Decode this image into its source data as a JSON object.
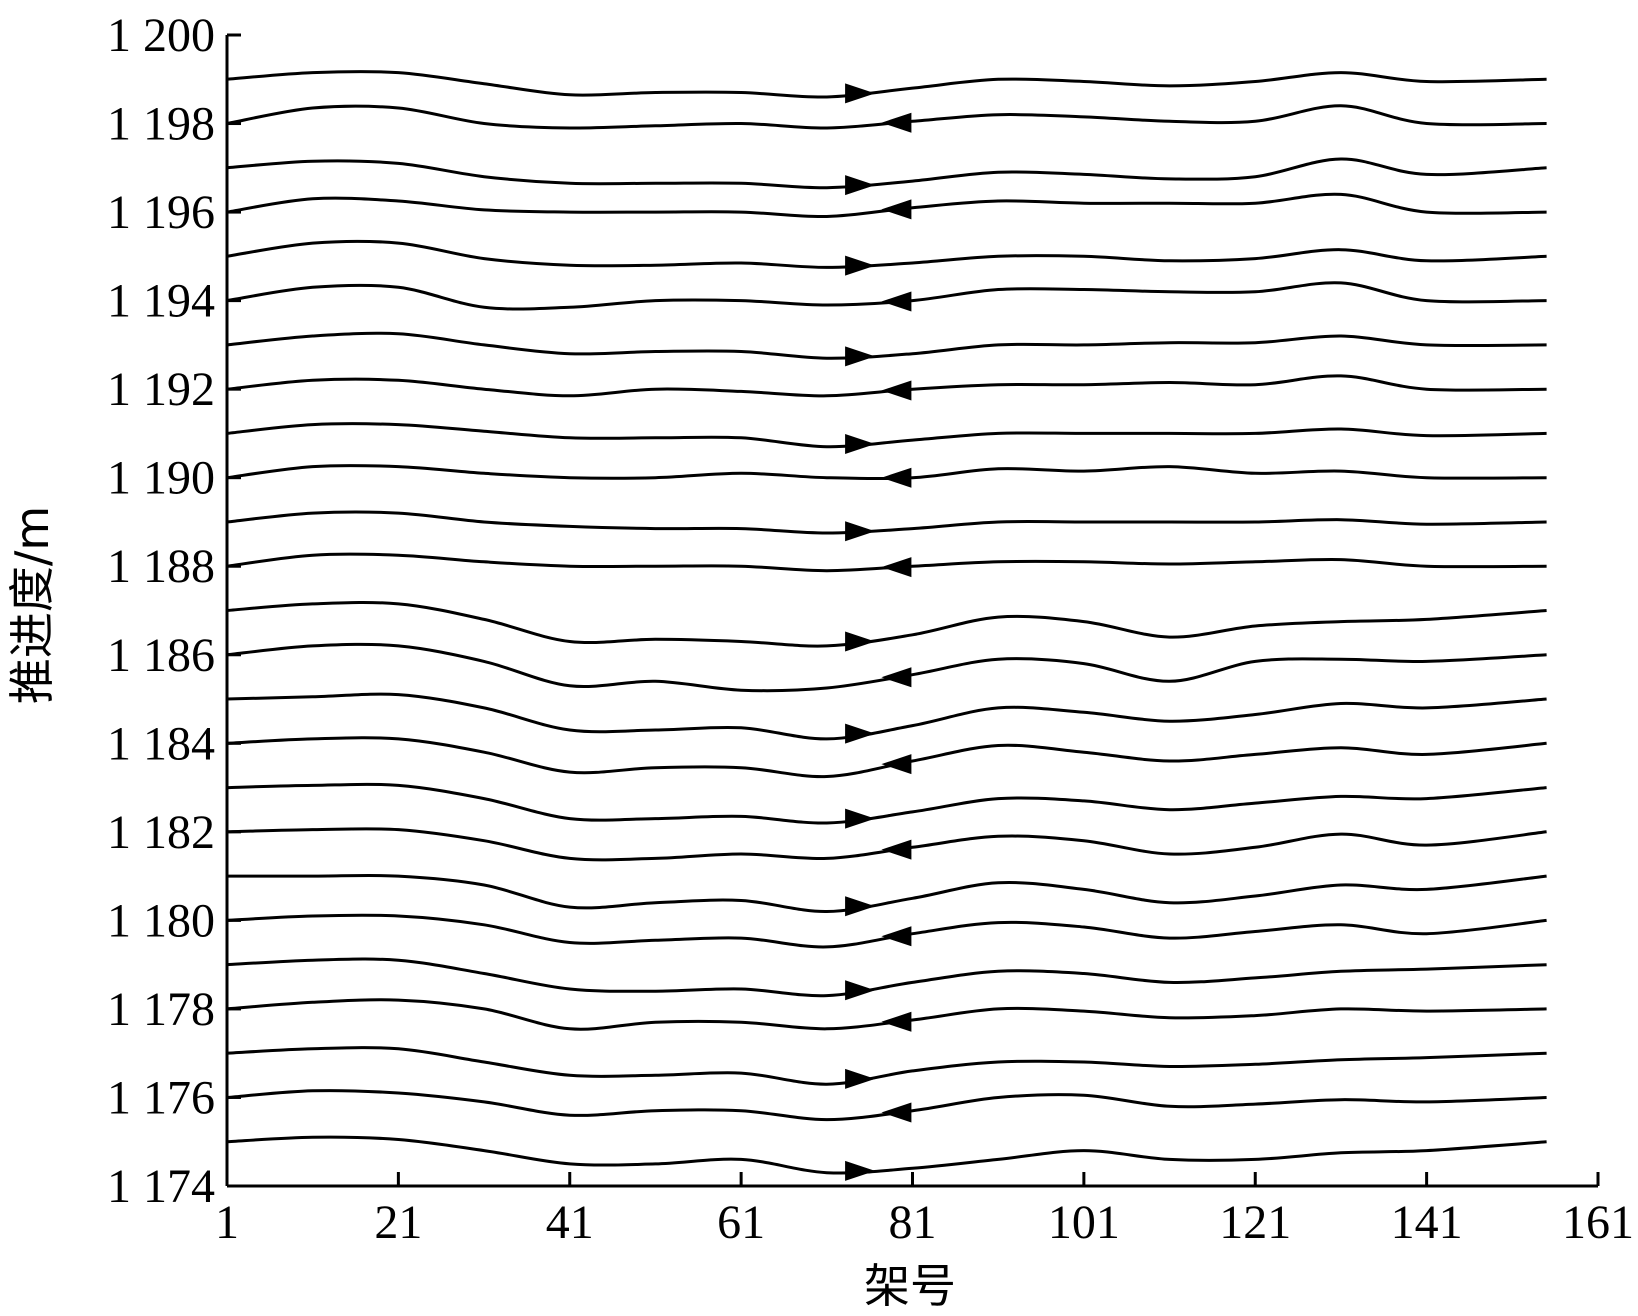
{
  "chart_data": {
    "type": "line",
    "title": "",
    "xlabel": "架号",
    "ylabel": "推进度/m",
    "xlim": [
      1,
      161
    ],
    "ylim": [
      1174,
      1200
    ],
    "xticks": [
      1,
      21,
      41,
      61,
      81,
      101,
      121,
      141,
      161
    ],
    "xtick_labels": [
      "1",
      "21",
      "41",
      "61",
      "81",
      "101",
      "121",
      "141",
      "161"
    ],
    "yticks": [
      1174,
      1176,
      1178,
      1180,
      1182,
      1184,
      1186,
      1188,
      1190,
      1192,
      1194,
      1196,
      1198,
      1200
    ],
    "ytick_labels": [
      "1 174",
      "1 176",
      "1 178",
      "1 180",
      "1 182",
      "1 184",
      "1 186",
      "1 188",
      "1 190",
      "1 192",
      "1 194",
      "1 196",
      "1 198",
      "1 200"
    ],
    "grid": false,
    "line_color": "#000000",
    "x": [
      1,
      11,
      21,
      31,
      41,
      51,
      61,
      71,
      81,
      91,
      101,
      111,
      121,
      131,
      141,
      155
    ],
    "series": [
      {
        "values": [
          1175.0,
          1175.1,
          1175.05,
          1174.8,
          1174.5,
          1174.5,
          1174.6,
          1174.3,
          1174.4,
          1174.6,
          1174.8,
          1174.6,
          1174.6,
          1174.75,
          1174.8,
          1175.0
        ],
        "direction": "right"
      },
      {
        "values": [
          1176.0,
          1176.15,
          1176.1,
          1175.9,
          1175.6,
          1175.7,
          1175.7,
          1175.5,
          1175.7,
          1176.0,
          1176.05,
          1175.8,
          1175.85,
          1175.95,
          1175.9,
          1176.0
        ],
        "direction": "left"
      },
      {
        "values": [
          1177.0,
          1177.1,
          1177.1,
          1176.8,
          1176.5,
          1176.5,
          1176.55,
          1176.3,
          1176.6,
          1176.8,
          1176.8,
          1176.7,
          1176.75,
          1176.85,
          1176.9,
          1177.0
        ],
        "direction": "right"
      },
      {
        "values": [
          1178.0,
          1178.15,
          1178.2,
          1178.0,
          1177.55,
          1177.7,
          1177.7,
          1177.55,
          1177.75,
          1178.0,
          1177.95,
          1177.8,
          1177.85,
          1178.0,
          1177.95,
          1178.0
        ],
        "direction": "left"
      },
      {
        "values": [
          1179.0,
          1179.1,
          1179.1,
          1178.8,
          1178.45,
          1178.4,
          1178.45,
          1178.3,
          1178.6,
          1178.85,
          1178.8,
          1178.6,
          1178.7,
          1178.85,
          1178.9,
          1179.0
        ],
        "direction": "right"
      },
      {
        "values": [
          1180.0,
          1180.1,
          1180.1,
          1179.9,
          1179.5,
          1179.55,
          1179.6,
          1179.4,
          1179.7,
          1179.95,
          1179.85,
          1179.6,
          1179.75,
          1179.9,
          1179.7,
          1180.0
        ],
        "direction": "left"
      },
      {
        "values": [
          1181.0,
          1181.0,
          1181.0,
          1180.8,
          1180.3,
          1180.4,
          1180.45,
          1180.2,
          1180.5,
          1180.85,
          1180.7,
          1180.4,
          1180.55,
          1180.8,
          1180.7,
          1181.0
        ],
        "direction": "right"
      },
      {
        "values": [
          1182.0,
          1182.05,
          1182.05,
          1181.8,
          1181.4,
          1181.4,
          1181.5,
          1181.4,
          1181.65,
          1181.9,
          1181.8,
          1181.5,
          1181.65,
          1181.95,
          1181.7,
          1182.0
        ],
        "direction": "left"
      },
      {
        "values": [
          1183.0,
          1183.05,
          1183.05,
          1182.75,
          1182.3,
          1182.3,
          1182.35,
          1182.2,
          1182.45,
          1182.75,
          1182.7,
          1182.5,
          1182.65,
          1182.8,
          1182.75,
          1183.0
        ],
        "direction": "right"
      },
      {
        "values": [
          1184.0,
          1184.1,
          1184.1,
          1183.8,
          1183.35,
          1183.45,
          1183.45,
          1183.25,
          1183.6,
          1183.95,
          1183.8,
          1183.6,
          1183.75,
          1183.9,
          1183.75,
          1184.0
        ],
        "direction": "left"
      },
      {
        "values": [
          1185.0,
          1185.05,
          1185.1,
          1184.8,
          1184.3,
          1184.3,
          1184.35,
          1184.1,
          1184.4,
          1184.8,
          1184.7,
          1184.5,
          1184.65,
          1184.9,
          1184.8,
          1185.0
        ],
        "direction": "right"
      },
      {
        "values": [
          1186.0,
          1186.2,
          1186.2,
          1185.85,
          1185.3,
          1185.4,
          1185.2,
          1185.25,
          1185.55,
          1185.9,
          1185.8,
          1185.4,
          1185.85,
          1185.9,
          1185.85,
          1186.0
        ],
        "direction": "left"
      },
      {
        "values": [
          1187.0,
          1187.15,
          1187.15,
          1186.8,
          1186.3,
          1186.35,
          1186.3,
          1186.2,
          1186.45,
          1186.85,
          1186.75,
          1186.4,
          1186.65,
          1186.75,
          1186.8,
          1187.0
        ],
        "direction": "right"
      },
      {
        "values": [
          1188.0,
          1188.25,
          1188.25,
          1188.1,
          1188.0,
          1188.0,
          1188.0,
          1187.9,
          1188.0,
          1188.1,
          1188.1,
          1188.05,
          1188.1,
          1188.15,
          1188.0,
          1188.0
        ],
        "direction": "left"
      },
      {
        "values": [
          1189.0,
          1189.2,
          1189.2,
          1189.0,
          1188.9,
          1188.85,
          1188.85,
          1188.75,
          1188.85,
          1189.0,
          1189.0,
          1189.0,
          1189.0,
          1189.05,
          1188.95,
          1189.0
        ],
        "direction": "right"
      },
      {
        "values": [
          1190.0,
          1190.25,
          1190.25,
          1190.1,
          1190.0,
          1190.0,
          1190.1,
          1190.0,
          1190.0,
          1190.2,
          1190.15,
          1190.25,
          1190.1,
          1190.15,
          1190.0,
          1190.0
        ],
        "direction": "left"
      },
      {
        "values": [
          1191.0,
          1191.2,
          1191.2,
          1191.05,
          1190.9,
          1190.9,
          1190.9,
          1190.7,
          1190.85,
          1191.0,
          1191.0,
          1191.0,
          1191.0,
          1191.1,
          1190.95,
          1191.0
        ],
        "direction": "right"
      },
      {
        "values": [
          1192.0,
          1192.2,
          1192.2,
          1192.0,
          1191.85,
          1192.0,
          1191.95,
          1191.85,
          1192.0,
          1192.1,
          1192.1,
          1192.15,
          1192.1,
          1192.3,
          1192.0,
          1192.0
        ],
        "direction": "left"
      },
      {
        "values": [
          1193.0,
          1193.2,
          1193.25,
          1193.0,
          1192.8,
          1192.85,
          1192.85,
          1192.7,
          1192.8,
          1193.0,
          1193.0,
          1193.05,
          1193.05,
          1193.2,
          1193.0,
          1193.0
        ],
        "direction": "right"
      },
      {
        "values": [
          1194.0,
          1194.3,
          1194.3,
          1193.85,
          1193.85,
          1194.0,
          1194.0,
          1193.9,
          1194.0,
          1194.25,
          1194.25,
          1194.2,
          1194.2,
          1194.4,
          1194.0,
          1194.0
        ],
        "direction": "left"
      },
      {
        "values": [
          1195.0,
          1195.3,
          1195.3,
          1194.95,
          1194.8,
          1194.8,
          1194.85,
          1194.75,
          1194.85,
          1195.0,
          1195.0,
          1194.9,
          1194.95,
          1195.15,
          1194.9,
          1195.0
        ],
        "direction": "right"
      },
      {
        "values": [
          1196.0,
          1196.3,
          1196.25,
          1196.05,
          1196.0,
          1196.0,
          1196.0,
          1195.9,
          1196.1,
          1196.25,
          1196.2,
          1196.2,
          1196.2,
          1196.4,
          1196.0,
          1196.0
        ],
        "direction": "left"
      },
      {
        "values": [
          1197.0,
          1197.15,
          1197.1,
          1196.8,
          1196.65,
          1196.65,
          1196.65,
          1196.55,
          1196.7,
          1196.9,
          1196.85,
          1196.75,
          1196.8,
          1197.2,
          1196.85,
          1197.0
        ],
        "direction": "right"
      },
      {
        "values": [
          1198.0,
          1198.35,
          1198.35,
          1198.0,
          1197.9,
          1197.95,
          1198.0,
          1197.9,
          1198.05,
          1198.2,
          1198.15,
          1198.05,
          1198.05,
          1198.4,
          1198.0,
          1198.0
        ],
        "direction": "left"
      },
      {
        "values": [
          1199.0,
          1199.15,
          1199.15,
          1198.9,
          1198.65,
          1198.7,
          1198.7,
          1198.6,
          1198.8,
          1199.0,
          1198.95,
          1198.85,
          1198.95,
          1199.15,
          1198.95,
          1199.0
        ],
        "direction": "right"
      }
    ],
    "arrow_x": {
      "right": 75,
      "left": 79
    }
  }
}
